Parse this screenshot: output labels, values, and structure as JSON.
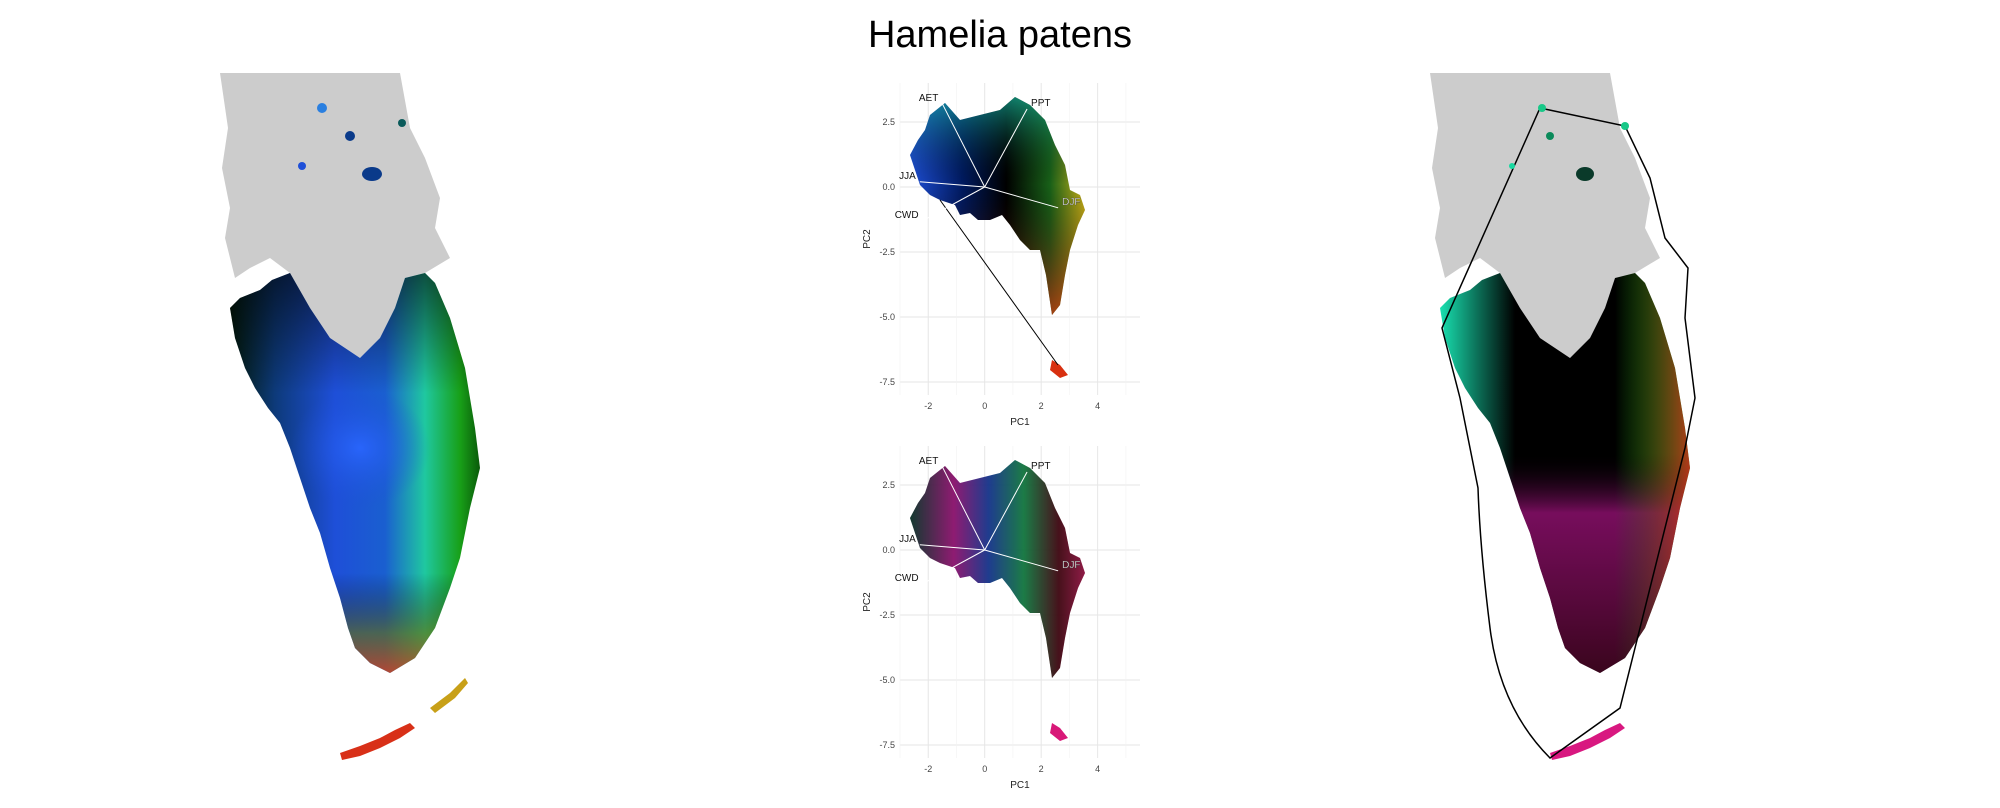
{
  "title": "Hamelia patens",
  "colors": {
    "land_gray": "#cccccc",
    "blue": "#1e4fd8",
    "teal": "#1fd8b0",
    "green": "#18b818",
    "yellow": "#d8c818",
    "red": "#d81818",
    "magenta": "#d818a8",
    "black": "#000000"
  },
  "chart_data": [
    {
      "type": "scatter",
      "xlabel": "PC1",
      "ylabel": "PC2",
      "xticks": [
        -2,
        0,
        2,
        4
      ],
      "yticks": [
        2.5,
        0.0,
        -2.5,
        -5.0,
        -7.5
      ],
      "xlim": [
        -3,
        5.5
      ],
      "ylim": [
        -8,
        4
      ],
      "grid": true,
      "loadings": [
        {
          "name": "AET",
          "x": -1.5,
          "y": 3.2
        },
        {
          "name": "PPT",
          "x": 1.5,
          "y": 3.0
        },
        {
          "name": "JJA",
          "x": -2.3,
          "y": 0.2
        },
        {
          "name": "CWD",
          "x": -2.2,
          "y": -1.3
        },
        {
          "name": "DJF",
          "x": 2.6,
          "y": -0.8
        }
      ]
    },
    {
      "type": "scatter",
      "xlabel": "PC1",
      "ylabel": "PC2",
      "xticks": [
        -2,
        0,
        2,
        4
      ],
      "yticks": [
        2.5,
        0.0,
        -2.5,
        -5.0,
        -7.5
      ],
      "xlim": [
        -3,
        5.5
      ],
      "ylim": [
        -8,
        4
      ],
      "grid": true,
      "loadings": [
        {
          "name": "AET",
          "x": -1.5,
          "y": 3.2
        },
        {
          "name": "PPT",
          "x": 1.5,
          "y": 3.0
        },
        {
          "name": "JJA",
          "x": -2.3,
          "y": 0.2
        },
        {
          "name": "CWD",
          "x": -2.2,
          "y": -1.3
        },
        {
          "name": "DJF",
          "x": 2.6,
          "y": -0.8
        }
      ]
    }
  ]
}
